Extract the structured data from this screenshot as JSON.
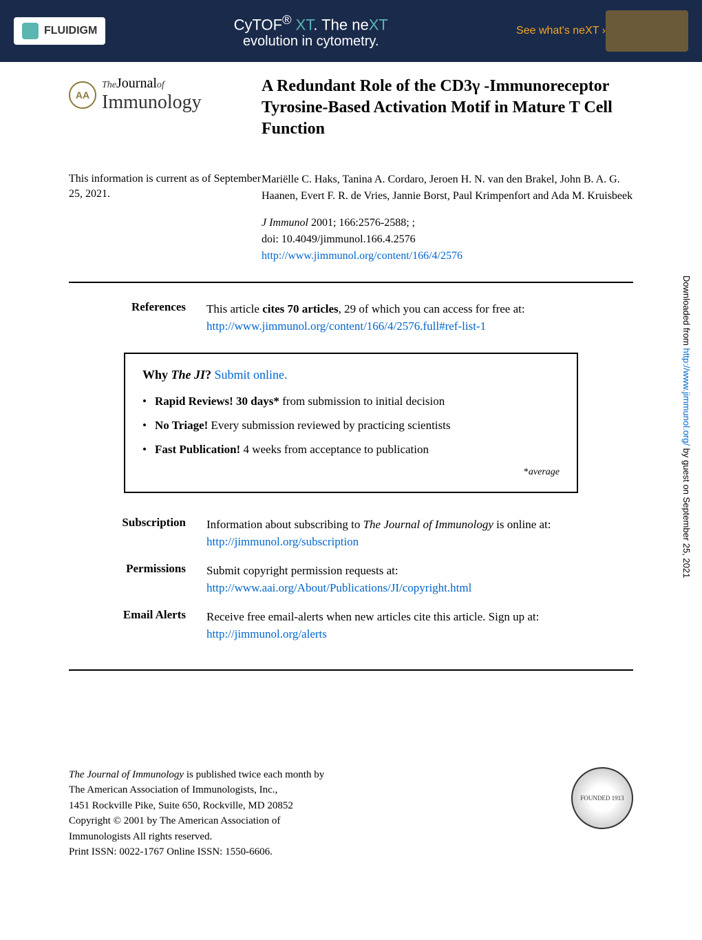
{
  "banner": {
    "logo_text": "FLUIDIGM",
    "title_line1_prefix": "CyTOF",
    "title_line1_sup": "®",
    "title_line1_xt": " XT",
    "title_line1_suffix": ". The ne",
    "title_line1_xt2": "XT",
    "title_line2": "evolution in cytometry.",
    "cta_prefix": "See what's ne",
    "cta_xt": "XT ›"
  },
  "journal": {
    "the": "The",
    "journal": "Journal",
    "of": "of",
    "name": "Immunology",
    "badge": "AA"
  },
  "article": {
    "title": "A Redundant Role of the CD3γ -Immunoreceptor Tyrosine-Based Activation Motif in Mature T Cell Function",
    "current_info": "This information is current as of September 25, 2021.",
    "authors": "Mariëlle C. Haks, Tanina A. Cordaro, Jeroen H. N. van den Brakel, John B. A. G. Haanen, Evert F. R. de Vries, Jannie Borst, Paul Krimpenfort and Ada M. Kruisbeek",
    "citation_journal": "J Immunol",
    "citation_year_pages": " 2001; 166:2576-2588; ;",
    "citation_doi": "doi: 10.4049/jimmunol.166.4.2576",
    "citation_url": "http://www.jimmunol.org/content/166/4/2576"
  },
  "references": {
    "label": "References",
    "text_prefix": "This article ",
    "text_bold": "cites 70 articles",
    "text_suffix": ", 29 of which you can access for free at:",
    "url": "http://www.jimmunol.org/content/166/4/2576.full#ref-list-1"
  },
  "whybox": {
    "title_prefix": "Why ",
    "title_italic": "The JI",
    "title_suffix": "? ",
    "title_link": "Submit online.",
    "items": [
      {
        "bold": "Rapid Reviews! 30 days*",
        "rest": " from submission to initial decision"
      },
      {
        "bold": "No Triage!",
        "rest": " Every submission reviewed by practicing scientists"
      },
      {
        "bold": "Fast Publication!",
        "rest": " 4 weeks from acceptance to publication"
      }
    ],
    "average": "average"
  },
  "subscription": {
    "label": "Subscription",
    "text_prefix": "Information about subscribing to ",
    "text_italic": "The Journal of Immunology",
    "text_suffix": " is online at:",
    "url": "http://jimmunol.org/subscription"
  },
  "permissions": {
    "label": "Permissions",
    "text": "Submit copyright permission requests at:",
    "url": "http://www.aai.org/About/Publications/JI/copyright.html"
  },
  "alerts": {
    "label": "Email Alerts",
    "text": "Receive free email-alerts when new articles cite this article. Sign up at:",
    "url": "http://jimmunol.org/alerts"
  },
  "sidebar": {
    "text_prefix": "Downloaded from ",
    "url": "http://www.jimmunol.org/",
    "text_suffix": " by guest on September 25, 2021"
  },
  "footer": {
    "line1_italic": "The Journal of Immunology",
    "line1_rest": " is published twice each month by",
    "line2": "The American Association of Immunologists, Inc.,",
    "line3": "1451 Rockville Pike, Suite 650, Rockville, MD 20852",
    "line4": "Copyright © 2001 by The American Association of",
    "line5": "Immunologists All rights reserved.",
    "line6": "Print ISSN: 0022-1767 Online ISSN: 1550-6606.",
    "logo_text": "FOUNDED 1913"
  },
  "colors": {
    "banner_bg": "#1a2a4a",
    "teal": "#5bb5b0",
    "orange": "#f5a623",
    "link": "#0066cc",
    "gold": "#8a7a3a"
  }
}
